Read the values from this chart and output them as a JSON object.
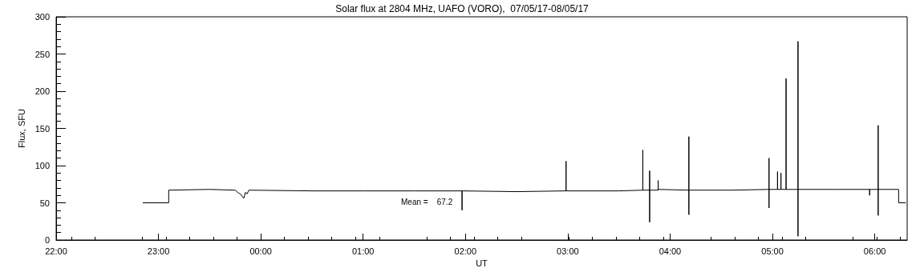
{
  "chart_data": {
    "type": "line",
    "title": "Solar flux at 2804 MHz, UAFO (VORO),  07/05/17-08/05/17",
    "xlabel": "UT",
    "ylabel": "Flux, SFU",
    "annotations": [
      "Mean =    67.2"
    ],
    "xlim": [
      "--05-07T22:00",
      "--05-08T06:19"
    ],
    "xticks": [
      {
        "value": "--05-07T22:00",
        "label": "22:00"
      },
      {
        "value": "--05-07T23:00",
        "label": "23:00"
      },
      {
        "value": "--05-08T00:00",
        "label": "00:00"
      },
      {
        "value": "--05-08T01:00",
        "label": "01:00"
      },
      {
        "value": "--05-08T02:00",
        "label": "02:00"
      },
      {
        "value": "--05-08T03:00",
        "label": "03:00"
      },
      {
        "value": "--05-08T04:00",
        "label": "04:00"
      },
      {
        "value": "--05-08T05:00",
        "label": "05:00"
      },
      {
        "value": "--05-08T06:00",
        "label": "06:00"
      }
    ],
    "ylim": [
      0,
      300
    ],
    "yticks": [
      0,
      50,
      100,
      150,
      200,
      250,
      300
    ],
    "grid": false,
    "marker": "none",
    "line_style": "solid",
    "series": [
      {
        "color": "#000000",
        "x": [
          "--05-07T22:51",
          "--05-07T23:06",
          "--05-07T23:06",
          "--05-07T23:30",
          "--05-07T23:45",
          "--05-07T23:47",
          "--05-07T23:48",
          "--05-07T23:50",
          "--05-07T23:51",
          "--05-07T23:52",
          "--05-07T23:53",
          "--05-08T00:30",
          "--05-08T01:00",
          "--05-08T01:30",
          "--05-08T01:58",
          "--05-08T01:58",
          "--05-08T01:58",
          "--05-08T02:30",
          "--05-08T02:59",
          "--05-08T02:59",
          "--05-08T02:59",
          "--05-08T03:30",
          "--05-08T03:44",
          "--05-08T03:44",
          "--05-08T03:44",
          "--05-08T03:48",
          "--05-08T03:48",
          "--05-08T03:48",
          "--05-08T03:48",
          "--05-08T03:53",
          "--05-08T03:53",
          "--05-08T03:53",
          "--05-08T04:11",
          "--05-08T04:11",
          "--05-08T04:11",
          "--05-08T04:11",
          "--05-08T04:36",
          "--05-08T04:58",
          "--05-08T04:58",
          "--05-08T04:58",
          "--05-08T04:58",
          "--05-08T05:03",
          "--05-08T05:03",
          "--05-08T05:03",
          "--05-08T05:05",
          "--05-08T05:05",
          "--05-08T05:05",
          "--05-08T05:08",
          "--05-08T05:08",
          "--05-08T05:08",
          "--05-08T05:15",
          "--05-08T05:15",
          "--05-08T05:15",
          "--05-08T05:15",
          "--05-08T05:36",
          "--05-08T05:57",
          "--05-08T05:57",
          "--05-08T05:57",
          "--05-08T06:02",
          "--05-08T06:02",
          "--05-08T06:02",
          "--05-08T06:02",
          "--05-08T06:14",
          "--05-08T06:14",
          "--05-08T06:18"
        ],
        "values": [
          50,
          50,
          67,
          68,
          67,
          63,
          62,
          56,
          64,
          62,
          67,
          66,
          66,
          66,
          66,
          40,
          66,
          65,
          66,
          106,
          66,
          66,
          67,
          121,
          67,
          67,
          93,
          24,
          67,
          67,
          80,
          68,
          67,
          139,
          34,
          67,
          67,
          68,
          43,
          110,
          68,
          68,
          92,
          68,
          68,
          90,
          68,
          68,
          217,
          68,
          68,
          267,
          5,
          68,
          68,
          68,
          60,
          68,
          68,
          154,
          33,
          68,
          68,
          50,
          50
        ]
      }
    ]
  }
}
